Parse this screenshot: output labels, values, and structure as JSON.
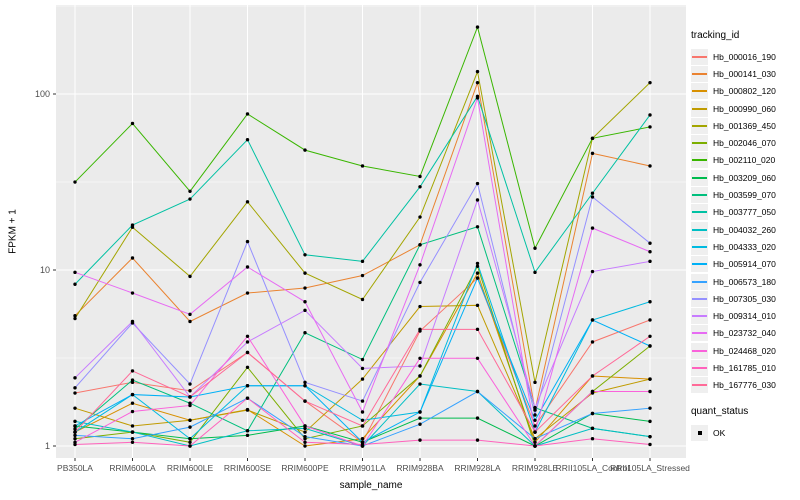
{
  "chart_data": {
    "type": "line",
    "title": "",
    "xlabel": "sample_name",
    "ylabel": "FPKM + 1",
    "y_scale": "log10",
    "yticks": [
      1,
      10,
      100
    ],
    "ytick_labels": [
      "1",
      "10",
      "100"
    ],
    "ylim": [
      0.89,
      316
    ],
    "grid": "major-and-minor, white on grey panel",
    "legend_position": "right",
    "point_marker": "black dot on every vertex",
    "categories": [
      "PB350LA",
      "RRIM600LA",
      "RRIM600LE",
      "RRIM600SE",
      "RRIM600PE",
      "RRIM901LA",
      "RRIM928BA",
      "RRIM928LA",
      "RRIM928LE",
      "RRII105LA_Control",
      "RRII105LA_Stressed"
    ],
    "series": [
      {
        "name": "Hb_000016_190",
        "color": "#F8766D",
        "values": [
          2.0,
          2.3,
          2.06,
          3.4,
          1.8,
          1.05,
          4.5,
          9.0,
          1.3,
          3.9,
          5.2
        ]
      },
      {
        "name": "Hb_000141_030",
        "color": "#EA8331",
        "values": [
          5.5,
          11.7,
          5.1,
          7.4,
          7.9,
          9.3,
          13.9,
          116,
          1.6,
          46,
          39
        ]
      },
      {
        "name": "Hb_000802_120",
        "color": "#D89000",
        "values": [
          1.2,
          1.75,
          1.4,
          1.61,
          1.0,
          1.1,
          2.5,
          9.6,
          1.05,
          2.5,
          2.4
        ]
      },
      {
        "name": "Hb_000990_060",
        "color": "#C09B00",
        "values": [
          1.64,
          1.3,
          1.4,
          1.6,
          1.2,
          2.4,
          6.2,
          6.3,
          1.1,
          2.0,
          2.4
        ]
      },
      {
        "name": "Hb_001369_450",
        "color": "#A3A500",
        "values": [
          5.3,
          17.5,
          9.2,
          24.4,
          9.6,
          6.8,
          20,
          134,
          2.3,
          56,
          116
        ]
      },
      {
        "name": "Hb_002046_070",
        "color": "#7CAE00",
        "values": [
          1.1,
          1.2,
          1.05,
          2.8,
          1.1,
          1.3,
          2.5,
          10.5,
          1.0,
          2.04,
          3.7
        ]
      },
      {
        "name": "Hb_002110_020",
        "color": "#39B600",
        "values": [
          31.6,
          68,
          28,
          77,
          48,
          39,
          34,
          240,
          13.3,
          56,
          65
        ]
      },
      {
        "name": "Hb_003209_060",
        "color": "#00BB4E",
        "values": [
          1.3,
          1.2,
          1.1,
          1.15,
          1.3,
          1.05,
          1.44,
          1.44,
          1.0,
          1.53,
          1.38
        ]
      },
      {
        "name": "Hb_003599_070",
        "color": "#00BF7D",
        "values": [
          1.25,
          2.37,
          1.75,
          1.22,
          4.4,
          3.1,
          13.9,
          17.6,
          1.65,
          1.26,
          1.13
        ]
      },
      {
        "name": "Hb_003777_050",
        "color": "#00C1A3",
        "values": [
          8.3,
          18,
          25.3,
          55,
          12.2,
          11.2,
          29.7,
          97,
          9.7,
          27.3,
          76
        ]
      },
      {
        "name": "Hb_004032_260",
        "color": "#00BFC4",
        "values": [
          1.38,
          1.2,
          1.0,
          1.22,
          1.26,
          1.0,
          2.25,
          2.04,
          1.0,
          1.26,
          1.13
        ]
      },
      {
        "name": "Hb_004333_020",
        "color": "#00BAE0",
        "values": [
          1.2,
          1.96,
          1.1,
          2.2,
          2.2,
          1.4,
          1.56,
          10.9,
          1.2,
          5.2,
          6.6
        ]
      },
      {
        "name": "Hb_005914_070",
        "color": "#00B0F6",
        "values": [
          1.3,
          1.96,
          1.9,
          2.2,
          2.2,
          1.05,
          1.56,
          9.0,
          1.4,
          5.2,
          3.7
        ]
      },
      {
        "name": "Hb_006573_180",
        "color": "#35A2FF",
        "values": [
          1.15,
          1.1,
          1.28,
          1.87,
          1.13,
          1.0,
          1.33,
          2.04,
          1.1,
          1.53,
          1.64
        ]
      },
      {
        "name": "Hb_007305_030",
        "color": "#9590FF",
        "values": [
          2.14,
          5.0,
          2.25,
          14.5,
          2.3,
          1.8,
          8.5,
          31,
          1.5,
          26,
          14.2
        ]
      },
      {
        "name": "Hb_009314_010",
        "color": "#C77CFF",
        "values": [
          2.44,
          5.1,
          1.9,
          3.9,
          5.9,
          2.76,
          2.85,
          25,
          1.65,
          9.8,
          11.2
        ]
      },
      {
        "name": "Hb_023732_040",
        "color": "#E76BF3",
        "values": [
          9.7,
          7.4,
          5.6,
          10.4,
          6.6,
          1.56,
          10.7,
          95,
          1.2,
          17.3,
          12.7
        ]
      },
      {
        "name": "Hb_024468_020",
        "color": "#FA62DB",
        "values": [
          1.05,
          1.57,
          1.7,
          4.2,
          1.3,
          1.0,
          3.15,
          3.15,
          1.0,
          2.04,
          2.04
        ]
      },
      {
        "name": "Hb_161785_010",
        "color": "#FF62BC",
        "values": [
          1.02,
          1.05,
          1.0,
          1.87,
          1.05,
          1.02,
          1.08,
          1.08,
          1.0,
          1.1,
          1.02
        ]
      },
      {
        "name": "Hb_167776_030",
        "color": "#FF6A98",
        "values": [
          1.2,
          2.67,
          1.9,
          3.4,
          1.8,
          1.3,
          4.6,
          4.6,
          1.2,
          2.5,
          4.2
        ]
      }
    ],
    "legend": {
      "series_title": "tracking_id",
      "status_title": "quant_status",
      "status_label": "OK"
    }
  },
  "colors": {
    "panel_bg": "#EBEBEB",
    "gridline": "#FFFFFF",
    "tick_label": "#4D4D4D",
    "tick_mark": "#333333",
    "axis_title": "#000000",
    "point": "#000000",
    "legend_key_bg": "#EFEFEF",
    "page_bg": "#FFFFFF"
  }
}
